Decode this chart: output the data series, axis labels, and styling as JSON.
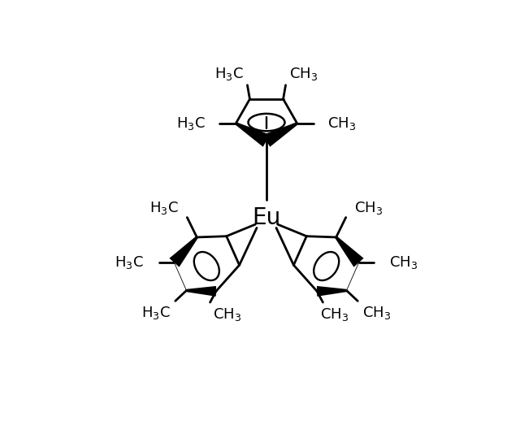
{
  "bg_color": "#ffffff",
  "lw": 2.0,
  "eu_fontsize": 20,
  "label_fontsize": 13,
  "figsize": [
    6.4,
    5.23
  ],
  "dpi": 100,
  "xlim": [
    -5.0,
    5.0
  ],
  "ylim": [
    -4.6,
    4.8
  ]
}
